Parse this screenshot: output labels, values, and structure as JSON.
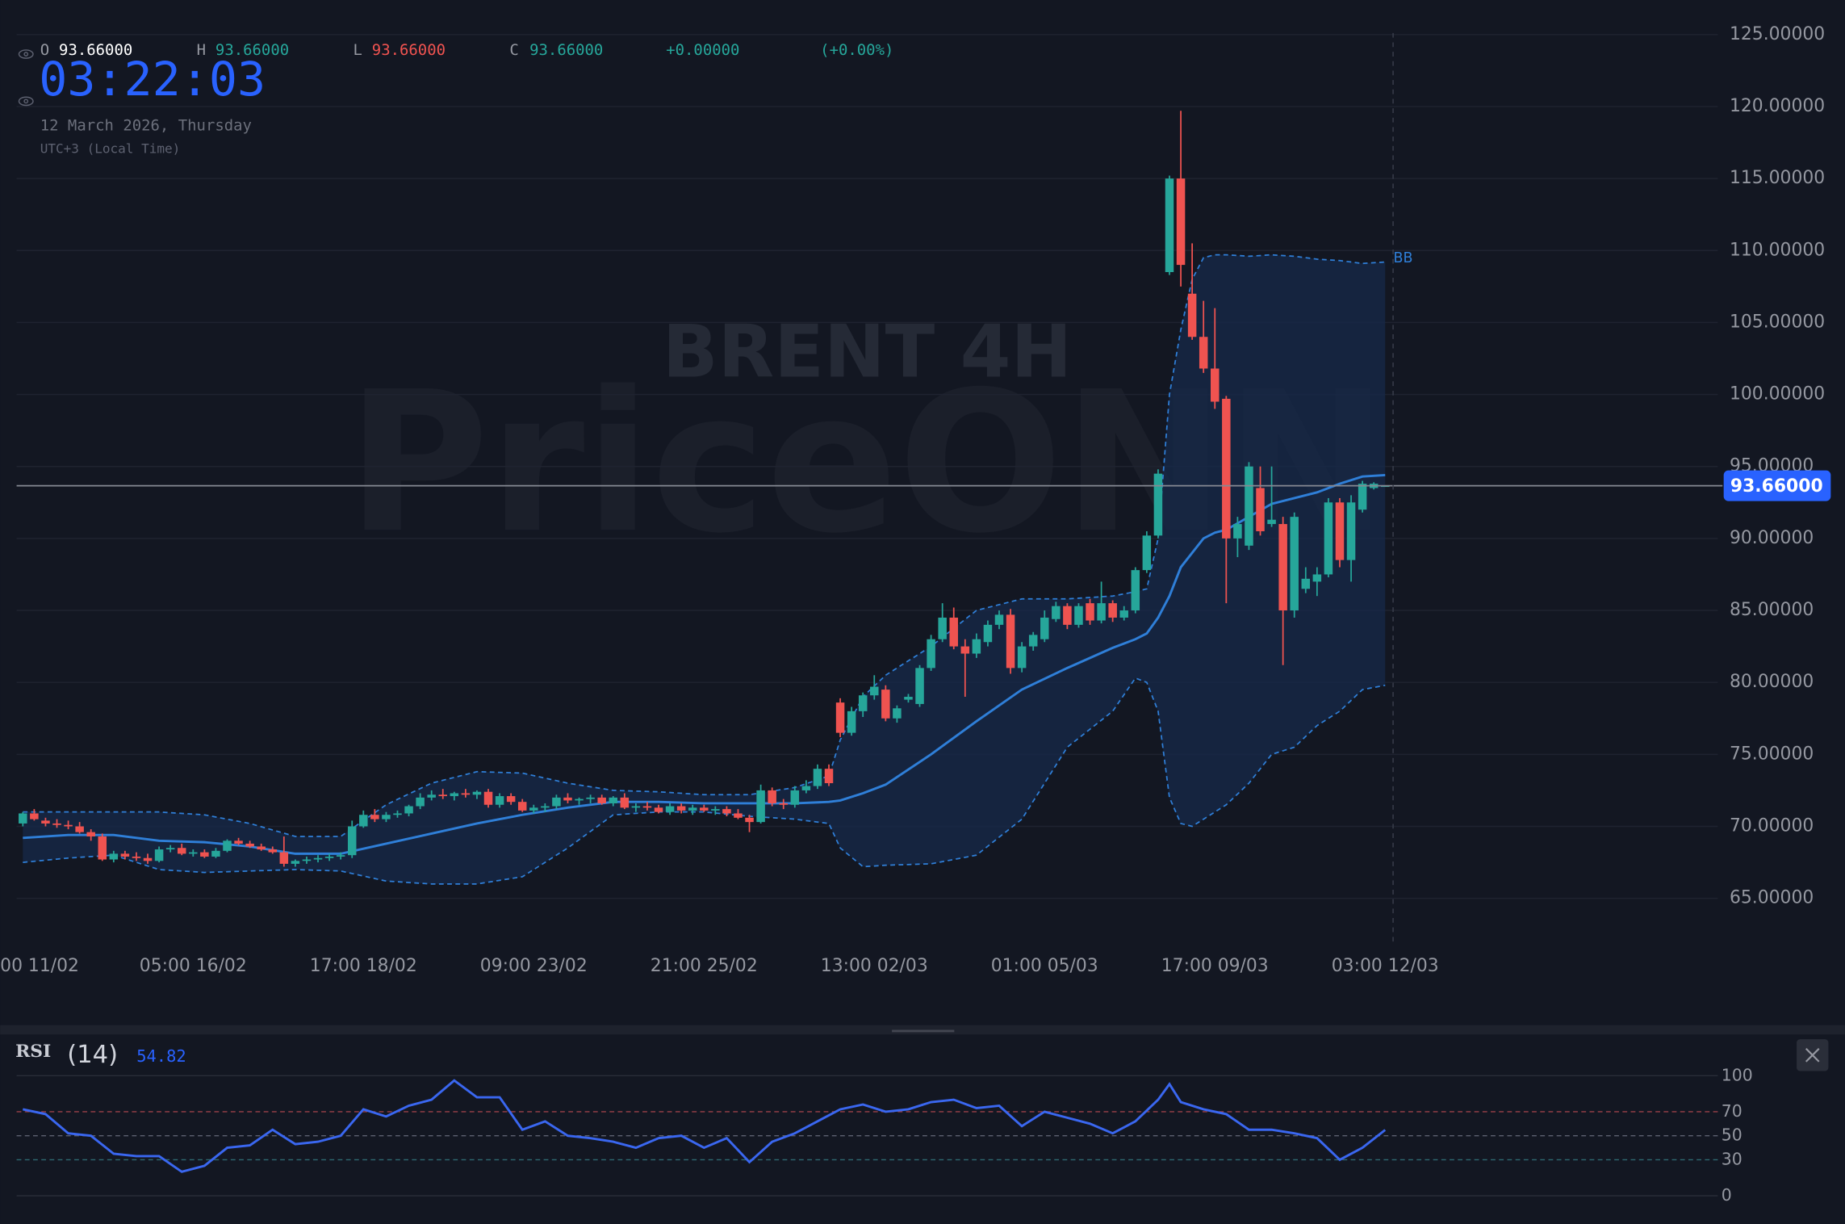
{
  "header": {
    "ohlc": [
      {
        "label": "O",
        "value": "93.66000"
      },
      {
        "label": "H",
        "value": "93.66000"
      },
      {
        "label": "L",
        "value": "93.66000"
      },
      {
        "label": "C",
        "value": "93.66000"
      }
    ],
    "change": "+0.00000",
    "change_pct": "(+0.00%)",
    "clock": "03:22:03",
    "date": "12 March 2026, Thursday",
    "timezone": "UTC+3 (Local Time)"
  },
  "chart_data": [
    {
      "type": "candlestick",
      "watermark_title": "BRENT 4H",
      "watermark_brand": "PriceONN",
      "up_color": "#26a69a",
      "down_color": "#ef5350",
      "x": [
        0,
        1,
        2,
        3,
        4,
        5,
        6,
        7,
        8,
        9,
        10,
        11,
        12,
        13,
        14,
        15,
        16,
        17,
        18,
        19,
        20,
        21,
        22,
        23,
        24,
        25,
        26,
        27,
        28,
        29,
        30,
        31,
        32,
        33,
        34,
        35,
        36,
        37,
        38,
        39,
        40,
        41,
        42,
        43,
        44,
        45,
        46,
        47,
        48,
        49,
        50,
        51,
        52,
        53,
        54,
        55,
        56,
        57,
        58,
        59,
        60,
        61,
        62,
        63,
        64,
        65,
        66,
        67,
        68,
        69,
        70,
        71,
        72,
        73,
        74,
        75,
        76,
        77,
        78,
        79,
        80,
        81,
        82,
        83,
        84,
        85,
        86,
        87,
        88,
        89,
        90,
        91,
        92,
        93,
        94,
        95,
        96,
        97,
        98,
        99,
        100,
        101,
        102,
        103,
        104,
        105,
        106,
        107,
        108,
        109,
        110,
        111,
        112,
        113,
        114,
        115,
        116,
        117,
        118,
        119,
        120
      ],
      "open": [
        70.2,
        70.9,
        70.4,
        70.2,
        70.1,
        70.0,
        69.6,
        69.3,
        67.7,
        68.1,
        67.9,
        67.8,
        67.6,
        68.4,
        68.5,
        68.1,
        68.2,
        67.9,
        68.3,
        69.0,
        68.8,
        68.6,
        68.4,
        68.2,
        67.4,
        67.6,
        67.7,
        67.8,
        67.9,
        68.0,
        70.0,
        70.8,
        70.5,
        70.8,
        70.9,
        71.4,
        72.0,
        72.2,
        72.1,
        72.3,
        72.2,
        72.4,
        71.5,
        72.1,
        71.7,
        71.1,
        71.3,
        71.4,
        72.0,
        71.8,
        71.9,
        72.0,
        71.6,
        72.0,
        71.3,
        71.4,
        71.3,
        71.0,
        71.4,
        71.1,
        71.3,
        71.1,
        71.2,
        70.9,
        70.6,
        70.3,
        72.5,
        71.6,
        71.5,
        72.5,
        72.8,
        74.0,
        78.6,
        76.5,
        78.0,
        79.1,
        79.5,
        77.5,
        78.8,
        78.5,
        81.0,
        83.0,
        84.5,
        82.5,
        82.0,
        82.8,
        84.0,
        84.7,
        81.0,
        82.5,
        83.0,
        84.4,
        85.3,
        84.0,
        85.5,
        84.3,
        85.5,
        84.5,
        85.0,
        87.8,
        90.2,
        108.5,
        115.0,
        107.0,
        104.0,
        101.8,
        99.7,
        90.0,
        89.5,
        93.5,
        91.0,
        91.0,
        85.0,
        86.5,
        87.0,
        87.5,
        92.5,
        88.5,
        92.0,
        93.5,
        93.66
      ],
      "high": [
        71.0,
        71.2,
        70.6,
        70.5,
        70.4,
        70.3,
        69.8,
        69.5,
        68.3,
        68.3,
        68.2,
        68.1,
        68.6,
        68.7,
        68.8,
        68.4,
        68.4,
        68.5,
        69.1,
        69.2,
        69.0,
        68.8,
        68.6,
        69.3,
        67.7,
        67.9,
        68.0,
        68.1,
        68.2,
        70.4,
        71.1,
        71.2,
        71.0,
        71.1,
        71.5,
        72.3,
        72.5,
        72.6,
        72.4,
        72.6,
        72.5,
        72.6,
        72.3,
        72.3,
        71.9,
        71.5,
        71.6,
        72.2,
        72.3,
        72.0,
        72.2,
        72.2,
        72.1,
        72.3,
        71.6,
        71.7,
        71.5,
        71.6,
        71.6,
        71.5,
        71.5,
        71.4,
        71.4,
        71.2,
        70.8,
        72.9,
        72.7,
        71.9,
        72.8,
        73.2,
        74.3,
        74.3,
        78.9,
        78.3,
        79.3,
        80.5,
        79.8,
        78.4,
        79.2,
        81.2,
        83.3,
        85.5,
        85.2,
        83.0,
        83.4,
        84.3,
        85.0,
        85.1,
        82.8,
        83.5,
        85.0,
        85.6,
        85.5,
        85.5,
        85.8,
        87.0,
        85.7,
        85.3,
        88.0,
        90.5,
        94.8,
        115.2,
        119.7,
        110.5,
        106.5,
        106.0,
        99.9,
        91.5,
        95.3,
        95.0,
        95.0,
        91.5,
        91.8,
        88.0,
        88.0,
        92.8,
        92.8,
        93.0,
        94.0,
        93.9,
        93.66
      ],
      "low": [
        70.0,
        70.4,
        70.0,
        69.9,
        69.8,
        69.5,
        69.0,
        67.6,
        67.5,
        67.7,
        67.6,
        67.4,
        67.5,
        68.2,
        68.0,
        67.9,
        67.8,
        67.8,
        68.2,
        68.7,
        68.5,
        68.3,
        68.1,
        67.2,
        67.2,
        67.4,
        67.5,
        67.6,
        67.7,
        67.8,
        69.9,
        70.3,
        70.3,
        70.6,
        70.7,
        71.2,
        71.8,
        71.9,
        71.8,
        72.0,
        71.9,
        71.3,
        71.3,
        71.5,
        71.0,
        70.9,
        71.0,
        71.2,
        71.6,
        71.5,
        71.6,
        71.5,
        71.4,
        71.2,
        71.0,
        71.1,
        70.9,
        70.8,
        70.9,
        70.8,
        71.0,
        70.8,
        70.7,
        70.5,
        69.6,
        70.2,
        71.4,
        71.2,
        71.3,
        72.3,
        72.6,
        72.8,
        76.2,
        76.3,
        77.6,
        78.8,
        77.3,
        77.2,
        78.6,
        78.3,
        80.8,
        82.8,
        82.3,
        79.0,
        81.7,
        82.5,
        83.7,
        80.6,
        80.7,
        82.2,
        82.8,
        84.2,
        83.7,
        83.8,
        84.0,
        84.1,
        84.2,
        84.3,
        84.8,
        87.6,
        90.0,
        108.3,
        107.5,
        103.8,
        101.5,
        99.0,
        85.5,
        88.7,
        89.2,
        90.2,
        90.8,
        81.2,
        84.5,
        86.2,
        86.0,
        87.3,
        88.0,
        87.0,
        91.8,
        93.4,
        93.66
      ],
      "close": [
        70.9,
        70.5,
        70.2,
        70.1,
        70.0,
        69.6,
        69.3,
        67.7,
        68.1,
        67.9,
        67.8,
        67.6,
        68.4,
        68.5,
        68.1,
        68.2,
        67.9,
        68.3,
        69.0,
        68.8,
        68.6,
        68.4,
        68.2,
        67.4,
        67.6,
        67.7,
        67.8,
        67.9,
        68.0,
        70.0,
        70.8,
        70.5,
        70.8,
        70.9,
        71.4,
        72.0,
        72.2,
        72.1,
        72.3,
        72.2,
        72.4,
        71.5,
        72.1,
        71.7,
        71.1,
        71.3,
        71.4,
        72.0,
        71.8,
        71.9,
        72.0,
        71.6,
        72.0,
        71.3,
        71.4,
        71.3,
        71.0,
        71.4,
        71.1,
        71.3,
        71.1,
        71.2,
        70.9,
        70.6,
        70.3,
        72.5,
        71.6,
        71.5,
        72.5,
        72.8,
        74.0,
        73.0,
        76.5,
        78.0,
        79.1,
        79.7,
        77.5,
        78.2,
        79.0,
        81.0,
        83.0,
        84.5,
        82.5,
        82.0,
        83.0,
        84.0,
        84.7,
        81.0,
        82.5,
        83.3,
        84.5,
        85.3,
        84.0,
        85.3,
        84.3,
        85.5,
        84.5,
        85.0,
        87.8,
        90.2,
        94.5,
        115.0,
        109.0,
        104.0,
        101.8,
        99.5,
        90.0,
        91.0,
        95.0,
        90.5,
        91.3,
        85.0,
        91.5,
        87.2,
        87.5,
        92.5,
        88.5,
        92.5,
        93.8,
        93.8,
        93.66
      ],
      "bands": {
        "name": "BB",
        "color": "#2f7fd8",
        "fill": "#17294a",
        "x": [
          0,
          4,
          8,
          12,
          16,
          20,
          24,
          28,
          32,
          36,
          40,
          44,
          48,
          52,
          56,
          60,
          64,
          68,
          71,
          72,
          74,
          76,
          80,
          84,
          88,
          92,
          96,
          98,
          99,
          100,
          101,
          102,
          103,
          104,
          105,
          106,
          108,
          110,
          112,
          114,
          116,
          118,
          120
        ],
        "upper": [
          71.0,
          71.0,
          71.0,
          71.0,
          70.8,
          70.2,
          69.3,
          69.3,
          71.5,
          73.0,
          73.8,
          73.7,
          73.0,
          72.5,
          72.4,
          72.2,
          72.2,
          72.7,
          73.5,
          76.0,
          79.0,
          80.5,
          82.5,
          85.0,
          85.8,
          85.8,
          86.0,
          86.3,
          86.5,
          90.0,
          100.0,
          104.5,
          108.0,
          109.5,
          109.7,
          109.7,
          109.6,
          109.7,
          109.6,
          109.4,
          109.3,
          109.1,
          109.2
        ],
        "middle": [
          69.2,
          69.4,
          69.4,
          69.0,
          68.9,
          68.6,
          68.1,
          68.1,
          68.8,
          69.5,
          70.2,
          70.8,
          71.3,
          71.7,
          71.7,
          71.6,
          71.6,
          71.6,
          71.7,
          71.8,
          72.3,
          72.9,
          75.0,
          77.3,
          79.5,
          81.0,
          82.4,
          83.0,
          83.4,
          84.5,
          86.0,
          88.0,
          89.0,
          90.0,
          90.4,
          90.6,
          91.5,
          92.4,
          92.8,
          93.2,
          93.8,
          94.3,
          94.4
        ],
        "lower": [
          67.5,
          67.8,
          68.0,
          67.0,
          66.8,
          66.9,
          67.0,
          66.9,
          66.2,
          66.0,
          66.0,
          66.5,
          68.5,
          70.8,
          71.0,
          71.0,
          70.7,
          70.5,
          70.2,
          68.5,
          67.2,
          67.3,
          67.4,
          68.0,
          70.5,
          75.5,
          78.0,
          80.3,
          80.0,
          78.0,
          72.0,
          70.2,
          70.0,
          70.5,
          71.0,
          71.5,
          73.0,
          75.0,
          75.5,
          77.0,
          78.0,
          79.5,
          79.8
        ]
      },
      "last_price": {
        "value": 93.66,
        "label": "93.66000"
      },
      "xlim": [
        -2,
        149.3
      ],
      "ylim": [
        62,
        127.4
      ],
      "xticks": [
        {
          "value": 0,
          "label": "00 11/02"
        },
        {
          "value": 15,
          "label": "05:00 16/02"
        },
        {
          "value": 30,
          "label": "17:00 18/02"
        },
        {
          "value": 45,
          "label": "09:00 23/02"
        },
        {
          "value": 60,
          "label": "21:00 25/02"
        },
        {
          "value": 75,
          "label": "13:00 02/03"
        },
        {
          "value": 90,
          "label": "01:00 05/03"
        },
        {
          "value": 105,
          "label": "17:00 09/03"
        },
        {
          "value": 120,
          "label": "03:00 12/03"
        }
      ],
      "yticks": [
        {
          "value": 65,
          "label": "65.00000"
        },
        {
          "value": 70,
          "label": "70.00000"
        },
        {
          "value": 75,
          "label": "75.00000"
        },
        {
          "value": 80,
          "label": "80.00000"
        },
        {
          "value": 85,
          "label": "85.00000"
        },
        {
          "value": 90,
          "label": "90.00000"
        },
        {
          "value": 95,
          "label": "95.00000"
        },
        {
          "value": 100,
          "label": "100.00000"
        },
        {
          "value": 105,
          "label": "105.00000"
        },
        {
          "value": 110,
          "label": "110.00000"
        },
        {
          "value": 115,
          "label": "115.00000"
        },
        {
          "value": 120,
          "label": "120.00000"
        },
        {
          "value": 125,
          "label": "125.00000"
        }
      ],
      "grid": true
    },
    {
      "type": "line",
      "title": "RSI",
      "period_label": "(14)",
      "current": 54.82,
      "color": "#3a67f0",
      "x": [
        0,
        2,
        4,
        6,
        8,
        10,
        12,
        14,
        16,
        18,
        20,
        22,
        24,
        26,
        28,
        30,
        32,
        34,
        36,
        38,
        40,
        42,
        44,
        46,
        48,
        50,
        52,
        54,
        56,
        58,
        60,
        62,
        64,
        66,
        68,
        70,
        72,
        74,
        76,
        78,
        80,
        82,
        84,
        86,
        88,
        90,
        92,
        94,
        96,
        98,
        100,
        101,
        102,
        104,
        106,
        108,
        110,
        112,
        114,
        116,
        118,
        120
      ],
      "values": [
        72,
        68,
        52,
        50,
        35,
        33,
        33,
        20,
        25,
        40,
        42,
        55,
        43,
        45,
        50,
        72,
        66,
        75,
        80,
        96,
        82,
        82,
        55,
        62,
        50,
        48,
        45,
        40,
        48,
        50,
        40,
        48,
        28,
        45,
        52,
        62,
        72,
        76,
        70,
        72,
        78,
        80,
        73,
        75,
        58,
        70,
        65,
        60,
        52,
        62,
        80,
        93,
        78,
        72,
        68,
        55,
        55,
        52,
        48,
        30,
        40,
        54.82
      ],
      "levels": [
        70,
        50,
        30
      ],
      "level_colors": [
        "#9c4148",
        "#5d6170",
        "#2e6a73"
      ],
      "xlim": [
        -2,
        149.3
      ],
      "ylim": [
        -23.5,
        133.3
      ],
      "yticks": [
        0,
        30,
        50,
        70,
        100
      ],
      "grid": true
    }
  ]
}
